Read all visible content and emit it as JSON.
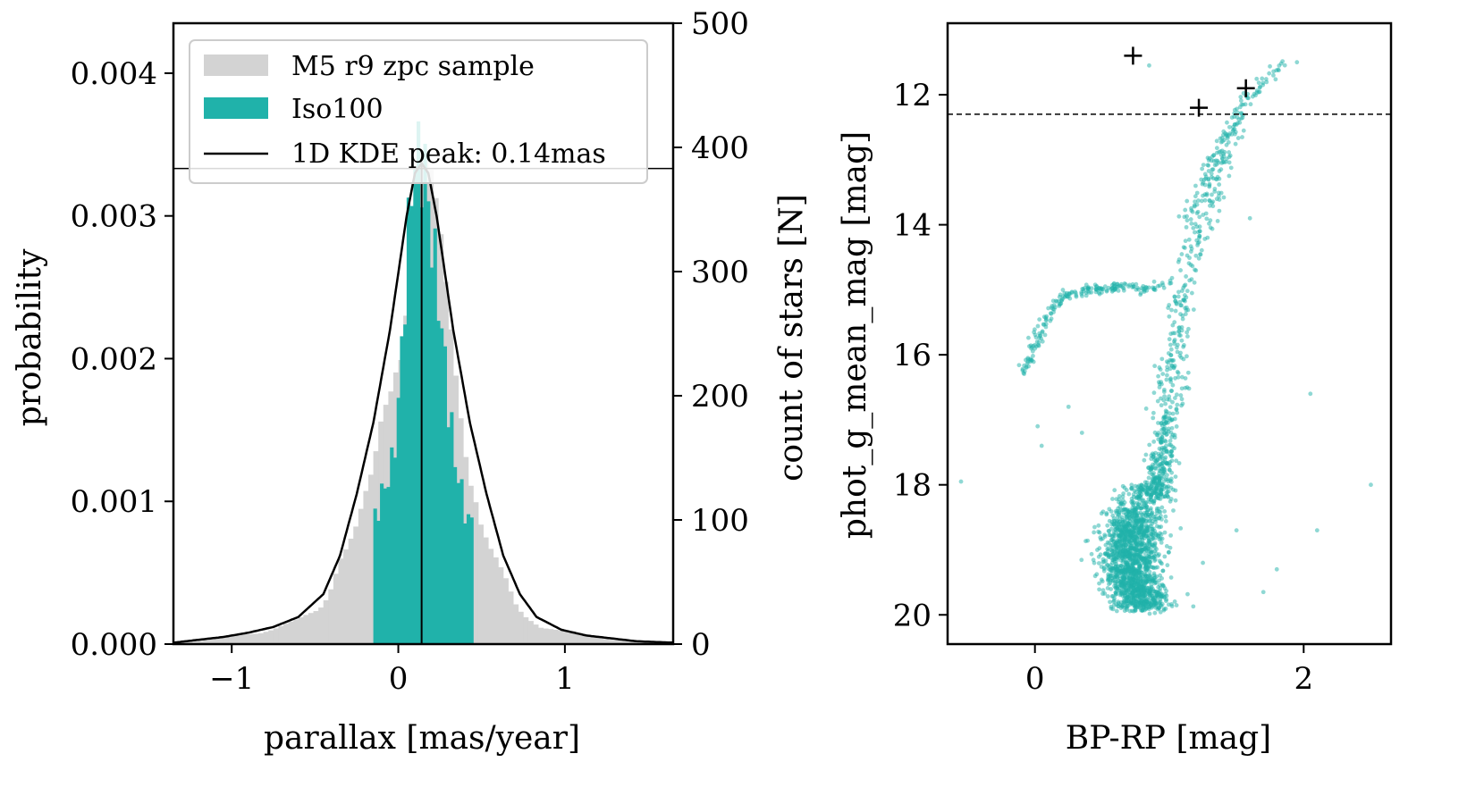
{
  "chart_data": [
    {
      "type": "bar",
      "subtype": "histogram-with-kde",
      "xlabel": "parallax [mas/year]",
      "ylabel": "probability",
      "ylabel_right": "count of stars [N]",
      "xlim": [
        -1.35,
        1.65
      ],
      "ylim": [
        0,
        0.00435
      ],
      "ylim_right": [
        0,
        500
      ],
      "x_ticks": [
        -1,
        0,
        1
      ],
      "x_tick_labels": [
        "−1",
        "0",
        "1"
      ],
      "y_ticks": [
        0,
        0.001,
        0.002,
        0.003,
        0.004
      ],
      "y_tick_labels": [
        "0.000",
        "0.001",
        "0.002",
        "0.003",
        "0.004"
      ],
      "y_ticks_right": [
        0,
        100,
        200,
        300,
        400,
        500
      ],
      "y_tick_labels_right": [
        "0",
        "100",
        "200",
        "300",
        "400",
        "500"
      ],
      "grid": false,
      "legend_position": "top-left",
      "legend": [
        {
          "label": "M5 r9 zpc sample",
          "color": "#d3d3d3",
          "kind": "patch"
        },
        {
          "label": "Iso100",
          "color": "#20b2aa",
          "kind": "patch"
        },
        {
          "label": "1D KDE peak: 0.14mas",
          "color": "#000000",
          "kind": "line"
        }
      ],
      "kde_peak_x": 0.14,
      "horizontal_line_right_axis": 383,
      "series": [
        {
          "name": "M5 r9 zpc sample",
          "color": "#d3d3d3",
          "bin_width": 0.03,
          "x": [
            -1.35,
            -1.2,
            -1.05,
            -0.9,
            -0.75,
            -0.6,
            -0.5,
            -0.45,
            -0.4,
            -0.35,
            -0.3,
            -0.25,
            -0.2,
            -0.15,
            -0.1,
            -0.05,
            0.0,
            0.05,
            0.1,
            0.14,
            0.2,
            0.25,
            0.3,
            0.35,
            0.4,
            0.45,
            0.5,
            0.55,
            0.6,
            0.65,
            0.7,
            0.75,
            0.85,
            1.0,
            1.15,
            1.3,
            1.45,
            1.6
          ],
          "y": [
            1e-05,
            2e-05,
            4e-05,
            7e-05,
            0.0001,
            0.00016,
            0.00022,
            0.00028,
            0.00045,
            0.0006,
            0.00066,
            0.00076,
            0.00094,
            0.00112,
            0.0015,
            0.00176,
            0.00216,
            0.0025,
            0.003,
            0.00325,
            0.00296,
            0.00262,
            0.00218,
            0.00178,
            0.00142,
            0.00118,
            0.00082,
            0.00064,
            0.00052,
            0.0004,
            0.00026,
            0.00019,
            0.00013,
            8e-05,
            5e-05,
            3e-05,
            2e-05,
            1e-05
          ]
        },
        {
          "name": "Iso100",
          "color": "#20b2aa",
          "bin_width": 0.02,
          "x": [
            -0.15,
            -0.12,
            -0.09,
            -0.06,
            -0.03,
            0.0,
            0.03,
            0.06,
            0.09,
            0.12,
            0.14,
            0.16,
            0.19,
            0.22,
            0.25,
            0.28,
            0.31,
            0.34,
            0.37,
            0.4,
            0.43
          ],
          "y": [
            0.00082,
            0.00096,
            0.00104,
            0.0011,
            0.0013,
            0.0016,
            0.0022,
            0.0028,
            0.0032,
            0.0033,
            0.0034,
            0.0032,
            0.0028,
            0.0026,
            0.0022,
            0.0019,
            0.0016,
            0.0012,
            0.0011,
            0.0009,
            0.00082
          ]
        },
        {
          "name": "1D KDE",
          "color": "#000000",
          "x": [
            -1.35,
            -1.2,
            -1.05,
            -0.9,
            -0.75,
            -0.6,
            -0.45,
            -0.35,
            -0.25,
            -0.15,
            -0.05,
            0.0,
            0.05,
            0.1,
            0.14,
            0.18,
            0.23,
            0.33,
            0.43,
            0.53,
            0.63,
            0.73,
            0.83,
            0.98,
            1.13,
            1.28,
            1.43,
            1.65
          ],
          "y": [
            1e-05,
            3e-05,
            5e-05,
            8e-05,
            0.00012,
            0.00019,
            0.00035,
            0.00062,
            0.00105,
            0.00155,
            0.0022,
            0.0026,
            0.003,
            0.0033,
            0.00337,
            0.0033,
            0.003,
            0.0022,
            0.00155,
            0.00105,
            0.00062,
            0.00035,
            0.00019,
            0.0001,
            6e-05,
            4e-05,
            2e-05,
            1e-05
          ]
        }
      ]
    },
    {
      "type": "scatter",
      "xlabel": "BP-RP [mag]",
      "ylabel": "phot_g_mean_mag [mag]",
      "xlim": [
        -0.65,
        2.65
      ],
      "ylim": [
        20.45,
        10.9
      ],
      "y_inverted": true,
      "x_ticks": [
        0,
        2
      ],
      "x_tick_labels": [
        "0",
        "2"
      ],
      "y_ticks": [
        12,
        14,
        16,
        18,
        20
      ],
      "y_tick_labels": [
        "12",
        "14",
        "16",
        "18",
        "20"
      ],
      "grid": false,
      "dashed_hline_y": 12.3,
      "point_color": "#20b2aa",
      "marked_stars": {
        "marker": "+",
        "x": [
          0.73,
          1.22,
          1.57
        ],
        "y": [
          11.4,
          12.2,
          11.9
        ]
      },
      "outliers": {
        "x": [
          -0.55,
          0.85,
          1.95,
          2.05,
          2.1,
          2.5,
          1.5,
          1.8,
          1.7,
          1.25,
          0.02,
          0.05,
          1.6,
          0.25,
          0.35
        ],
        "y": [
          17.95,
          11.55,
          11.5,
          16.6,
          18.7,
          18.0,
          18.7,
          19.3,
          19.65,
          19.2,
          17.1,
          17.4,
          13.9,
          16.8,
          17.2
        ]
      },
      "sequences": [
        {
          "name": "red giant branch",
          "x": [
            1.52,
            1.45,
            1.38,
            1.3,
            1.22,
            1.15,
            1.1,
            1.06,
            1.02,
            0.98,
            0.95,
            0.92,
            0.89
          ],
          "y": [
            12.3,
            12.8,
            13.2,
            13.6,
            14.1,
            14.6,
            15.2,
            15.8,
            16.4,
            17.0,
            17.5,
            17.9,
            18.2
          ],
          "spread_x": 0.05,
          "density": [
            12,
            20,
            24,
            26,
            28,
            30,
            38,
            45,
            55,
            70,
            90,
            110,
            90
          ]
        },
        {
          "name": "asymptotic giant branch",
          "x": [
            1.85,
            1.75,
            1.65,
            1.58,
            1.5,
            1.42,
            1.35,
            1.28,
            1.2,
            1.12
          ],
          "y": [
            11.5,
            11.7,
            11.95,
            12.1,
            12.35,
            12.6,
            12.9,
            13.2,
            13.6,
            14.0
          ],
          "spread_x": 0.03,
          "density": [
            10,
            12,
            14,
            14,
            16,
            16,
            16,
            16,
            16,
            16
          ]
        },
        {
          "name": "horizontal branch",
          "x": [
            1.0,
            0.9,
            0.8,
            0.7,
            0.6,
            0.5,
            0.4,
            0.3,
            0.2,
            0.12,
            0.06,
            0.01,
            -0.03,
            -0.06,
            -0.1
          ],
          "y": [
            14.9,
            14.95,
            15.0,
            14.95,
            14.95,
            15.0,
            15.0,
            15.05,
            15.1,
            15.3,
            15.55,
            15.8,
            16.0,
            16.15,
            16.25
          ],
          "spread_x": 0.02,
          "density": [
            10,
            12,
            14,
            16,
            18,
            18,
            18,
            18,
            18,
            16,
            14,
            14,
            12,
            10,
            8
          ]
        },
        {
          "name": "main sequence turnoff",
          "x": [
            0.75,
            0.7,
            0.68,
            0.7,
            0.75,
            0.8,
            0.85
          ],
          "y": [
            18.4,
            18.7,
            19.0,
            19.3,
            19.55,
            19.75,
            19.9
          ],
          "spread_x": 0.1,
          "density": [
            160,
            200,
            200,
            190,
            160,
            120,
            80
          ]
        }
      ]
    }
  ]
}
